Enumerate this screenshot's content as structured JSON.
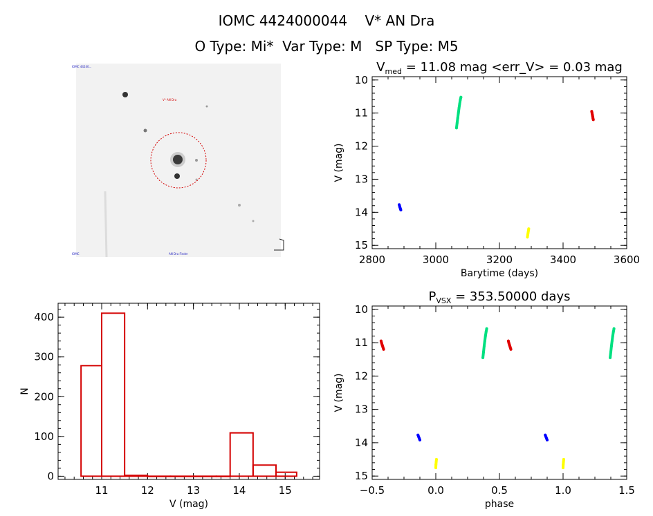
{
  "header": {
    "line1": "IOMC 4424000044    V* AN Dra",
    "line2": "O Type: Mi*  Var Type: M   SP Type: M5"
  },
  "image_panel": {
    "top_left_label": "IOMC 44240...",
    "top_center_label": "V* AN Dra",
    "bottom_left_label": "IOMC",
    "bottom_center_label": "AN Dra Finder",
    "colors": {
      "circle": "#d40000",
      "label": "#2020c0",
      "background": "#f2f2f2"
    }
  },
  "chart_data": [
    {
      "type": "scatter",
      "id": "lightcurve",
      "title": "V_med = 11.08 mag <err_V> = 0.03 mag",
      "title_parts": {
        "prefix": "V",
        "sub": "med",
        "rest": " = 11.08 mag <err_V> = 0.03 mag"
      },
      "xlabel": "Barytime (days)",
      "ylabel": "V (mag)",
      "xlim": [
        2800,
        3600
      ],
      "ylim": [
        15.1,
        9.9
      ],
      "y_inverted": true,
      "xticks": [
        2800,
        3000,
        3200,
        3400,
        3600
      ],
      "yticks": [
        10,
        11,
        12,
        13,
        14,
        15
      ],
      "series": [
        {
          "color": "#0000ff",
          "points": [
            [
              2885,
              13.77
            ],
            [
              2886,
              13.8
            ],
            [
              2887,
              13.84
            ],
            [
              2888,
              13.87
            ],
            [
              2889,
              13.9
            ],
            [
              2890,
              13.93
            ]
          ]
        },
        {
          "color": "#00e080",
          "points": [
            [
              3065,
              11.45
            ],
            [
              3067,
              11.3
            ],
            [
              3069,
              11.15
            ],
            [
              3071,
              11.0
            ],
            [
              3073,
              10.85
            ],
            [
              3075,
              10.72
            ],
            [
              3077,
              10.6
            ],
            [
              3079,
              10.52
            ]
          ]
        },
        {
          "color": "#ffff00",
          "points": [
            [
              3288,
              14.75
            ],
            [
              3289,
              14.68
            ],
            [
              3290,
              14.62
            ],
            [
              3291,
              14.56
            ],
            [
              3292,
              14.5
            ]
          ]
        },
        {
          "color": "#e00000",
          "points": [
            [
              3490,
              10.95
            ],
            [
              3491,
              11.0
            ],
            [
              3492,
              11.05
            ],
            [
              3493,
              11.1
            ],
            [
              3494,
              11.16
            ],
            [
              3495,
              11.2
            ]
          ]
        }
      ]
    },
    {
      "type": "bar",
      "id": "histogram",
      "xlabel": "V (mag)",
      "ylabel": "N",
      "xlim": [
        10.05,
        15.75
      ],
      "ylim": [
        -8,
        435
      ],
      "xticks": [
        11,
        12,
        13,
        14,
        15
      ],
      "yticks": [
        0,
        100,
        200,
        300,
        400
      ],
      "bins": [
        {
          "start": 10.55,
          "end": 11.0,
          "value": 278
        },
        {
          "start": 11.0,
          "end": 11.5,
          "value": 410
        },
        {
          "start": 11.5,
          "end": 12.0,
          "value": 2
        },
        {
          "start": 12.0,
          "end": 12.5,
          "value": 0
        },
        {
          "start": 12.5,
          "end": 13.0,
          "value": 0
        },
        {
          "start": 13.0,
          "end": 13.5,
          "value": 0
        },
        {
          "start": 13.5,
          "end": 13.8,
          "value": 0
        },
        {
          "start": 13.8,
          "end": 14.3,
          "value": 109
        },
        {
          "start": 14.3,
          "end": 14.8,
          "value": 28
        },
        {
          "start": 14.8,
          "end": 15.25,
          "value": 10
        }
      ],
      "bar_color": "#d40000"
    },
    {
      "type": "scatter",
      "id": "phased",
      "title": "P_VSX = 353.50000 days",
      "title_parts": {
        "prefix": "P",
        "sub": "VSX",
        "rest": " = 353.50000 days"
      },
      "xlabel": "phase",
      "ylabel": "V (mag)",
      "xlim": [
        -0.5,
        1.5
      ],
      "ylim": [
        15.1,
        9.9
      ],
      "y_inverted": true,
      "xticks": [
        -0.5,
        0.0,
        0.5,
        1.0,
        1.5
      ],
      "xtick_labels": [
        "−0.5",
        "0.0",
        "0.5",
        "1.0",
        "1.5"
      ],
      "yticks": [
        10,
        11,
        12,
        13,
        14,
        15
      ],
      "series": [
        {
          "color": "#e00000",
          "points": [
            [
              -0.43,
              10.95
            ],
            [
              -0.425,
              11.02
            ],
            [
              -0.42,
              11.08
            ],
            [
              -0.415,
              11.14
            ],
            [
              -0.41,
              11.2
            ]
          ]
        },
        {
          "color": "#e00000",
          "points": [
            [
              0.57,
              10.95
            ],
            [
              0.575,
              11.02
            ],
            [
              0.58,
              11.08
            ],
            [
              0.585,
              11.14
            ],
            [
              0.59,
              11.2
            ]
          ]
        },
        {
          "color": "#0000ff",
          "points": [
            [
              -0.14,
              13.77
            ],
            [
              -0.135,
              13.82
            ],
            [
              -0.13,
              13.87
            ],
            [
              -0.125,
              13.92
            ]
          ]
        },
        {
          "color": "#0000ff",
          "points": [
            [
              0.86,
              13.77
            ],
            [
              0.865,
              13.82
            ],
            [
              0.87,
              13.87
            ],
            [
              0.875,
              13.92
            ]
          ]
        },
        {
          "color": "#ffff00",
          "points": [
            [
              0.0,
              14.75
            ],
            [
              0.001,
              14.66
            ],
            [
              0.003,
              14.58
            ],
            [
              0.005,
              14.5
            ]
          ]
        },
        {
          "color": "#ffff00",
          "points": [
            [
              1.0,
              14.75
            ],
            [
              1.001,
              14.66
            ],
            [
              1.003,
              14.58
            ],
            [
              1.005,
              14.5
            ]
          ]
        },
        {
          "color": "#00e080",
          "points": [
            [
              0.37,
              11.45
            ],
            [
              0.375,
              11.28
            ],
            [
              0.38,
              11.1
            ],
            [
              0.385,
              10.95
            ],
            [
              0.39,
              10.8
            ],
            [
              0.395,
              10.68
            ],
            [
              0.4,
              10.58
            ]
          ]
        },
        {
          "color": "#00e080",
          "points": [
            [
              1.37,
              11.45
            ],
            [
              1.375,
              11.28
            ],
            [
              1.38,
              11.1
            ],
            [
              1.385,
              10.95
            ],
            [
              1.39,
              10.8
            ],
            [
              1.395,
              10.68
            ],
            [
              1.4,
              10.58
            ]
          ]
        }
      ]
    }
  ]
}
